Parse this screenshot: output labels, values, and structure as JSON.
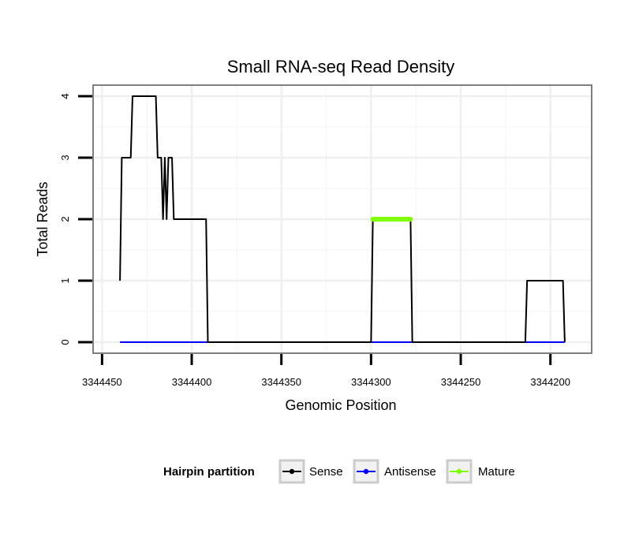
{
  "chart_data": {
    "type": "line",
    "title": "Small RNA-seq Read Density",
    "xlabel": "Genomic Position",
    "ylabel": "Total Reads",
    "x_reversed": true,
    "xlim": [
      3344455,
      3344177
    ],
    "ylim": [
      -0.18,
      4.18
    ],
    "x_ticks": [
      3344450,
      3344400,
      3344350,
      3344300,
      3344250,
      3344200
    ],
    "x_tick_labels": [
      "3344450",
      "3344400",
      "3344350",
      "3344300",
      "3344250",
      "3344200"
    ],
    "y_ticks": [
      0,
      1,
      2,
      3,
      4
    ],
    "y_tick_labels": [
      "0",
      "1",
      "2",
      "3",
      "4"
    ],
    "grid": true,
    "legend": {
      "title": "Hairpin partition",
      "placement": "bottom",
      "entries": [
        {
          "name": "Sense",
          "color": "#000000"
        },
        {
          "name": "Antisense",
          "color": "#0000ff"
        },
        {
          "name": "Mature",
          "color": "#7fff00"
        }
      ]
    },
    "series": [
      {
        "name": "Sense",
        "color": "#000000",
        "x": [
          3344440,
          3344439,
          3344434,
          3344433,
          3344420,
          3344419,
          3344417,
          3344416,
          3344415,
          3344414,
          3344413,
          3344411,
          3344410,
          3344392,
          3344391,
          3344300,
          3344299,
          3344278,
          3344277,
          3344214,
          3344213,
          3344193,
          3344192
        ],
        "y": [
          1,
          3,
          3,
          4,
          4,
          3,
          3,
          2,
          3,
          2,
          3,
          3,
          2,
          2,
          0,
          0,
          2,
          2,
          0,
          0,
          1,
          1,
          0
        ]
      },
      {
        "name": "Antisense",
        "color": "#0000ff",
        "x": [
          3344440,
          3344192
        ],
        "y": [
          0,
          0
        ]
      },
      {
        "name": "Mature",
        "color": "#7fff00",
        "x": [
          3344299,
          3344278
        ],
        "y": [
          2,
          2
        ]
      }
    ]
  }
}
